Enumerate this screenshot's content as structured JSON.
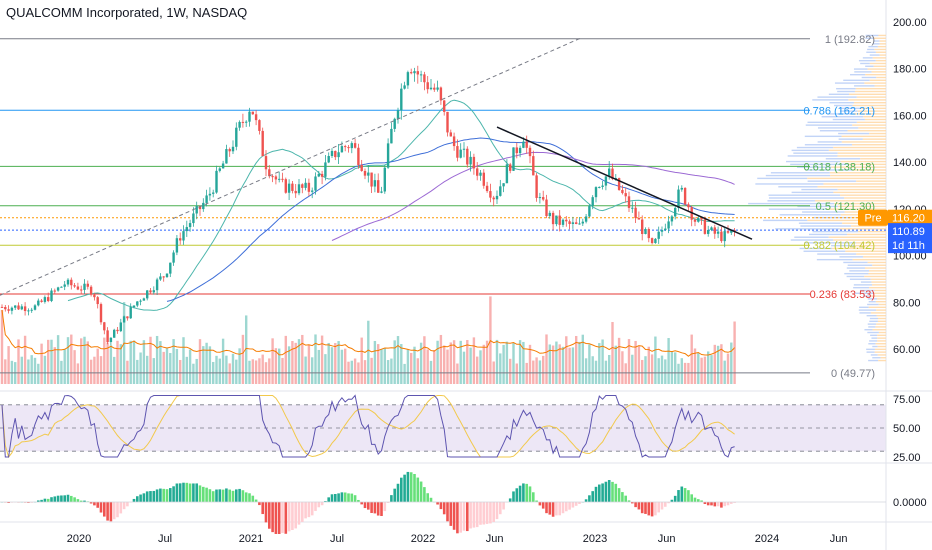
{
  "header": {
    "title": "QUALCOMM Incorporated, 1W, NASDAQ"
  },
  "colors": {
    "up": "#26a69a",
    "down": "#ef5350",
    "fib_gray": "#787b86",
    "fib_red": "#e53935",
    "fib_blue": "#2196f3",
    "fib_green": "#4caf50",
    "fib_olive": "#c0ca33",
    "ma_purple": "#9c6ad4",
    "ma_blue": "#3f6fd8",
    "ma_teal": "#4db6ac",
    "vol_ma": "#f57c00",
    "rsi_line": "#5e55b0",
    "rsi_ma": "#f2c94c",
    "rsi_bg": "#ede7f6",
    "price_badge": "#2962ff",
    "pre_badge": "#ff9800",
    "vp_up": "#ffd9a8",
    "vp_down": "#b3c9f5"
  },
  "price_axis": {
    "ticks": [
      "200.00",
      "180.00",
      "160.00",
      "140.00",
      "120.00",
      "100.00",
      "80.00",
      "60.00"
    ]
  },
  "rsi_axis": {
    "ticks": [
      "75.00",
      "50.00",
      "25.00"
    ]
  },
  "macd_axis": {
    "ticks": [
      "0.0000"
    ]
  },
  "time_axis": {
    "labels": [
      "2020",
      "Jul",
      "2021",
      "Jul",
      "2022",
      "Jun",
      "2023",
      "Jun",
      "2024",
      "Jun"
    ]
  },
  "fib_levels": [
    {
      "label": "1 (192.82)",
      "value": 192.82,
      "color_key": "fib_gray"
    },
    {
      "label": "0.786 (162.21)",
      "value": 162.21,
      "color_key": "fib_blue"
    },
    {
      "label": "0.618 (138.18)",
      "value": 138.18,
      "color_key": "fib_green"
    },
    {
      "label": "0.5 (121.30)",
      "value": 121.3,
      "color_key": "fib_green"
    },
    {
      "label": "0.382 (104.42)",
      "value": 104.42,
      "color_key": "fib_olive"
    },
    {
      "label": "0.236 (83.53)",
      "value": 83.53,
      "color_key": "fib_red"
    },
    {
      "label": "0 (49.77)",
      "value": 49.77,
      "color_key": "fib_gray"
    }
  ],
  "badges": {
    "pre_label": "Pre",
    "pre_price": "116.20",
    "last_price": "110.89",
    "countdown": "1d 11h"
  },
  "chart_data": {
    "type": "candlestick",
    "interval": "1W",
    "x_range": [
      "2019-10",
      "2024-07"
    ],
    "ylim": [
      45,
      200
    ],
    "close_anchors": [
      [
        "2019-10",
        78
      ],
      [
        "2019-12",
        88
      ],
      [
        "2020-02",
        85
      ],
      [
        "2020-03",
        63
      ],
      [
        "2020-05",
        80
      ],
      [
        "2020-07",
        92
      ],
      [
        "2020-08",
        108
      ],
      [
        "2020-10",
        125
      ],
      [
        "2020-12",
        152
      ],
      [
        "2021-01",
        165
      ],
      [
        "2021-02",
        140
      ],
      [
        "2021-03",
        130
      ],
      [
        "2021-05",
        128
      ],
      [
        "2021-07",
        145
      ],
      [
        "2021-08",
        148
      ],
      [
        "2021-10",
        125
      ],
      [
        "2021-11",
        160
      ],
      [
        "2021-12",
        183
      ],
      [
        "2022-01",
        175
      ],
      [
        "2022-02",
        170
      ],
      [
        "2022-03",
        148
      ],
      [
        "2022-05",
        135
      ],
      [
        "2022-06",
        125
      ],
      [
        "2022-08",
        152
      ],
      [
        "2022-09",
        125
      ],
      [
        "2022-10",
        115
      ],
      [
        "2022-12",
        112
      ],
      [
        "2023-01",
        130
      ],
      [
        "2023-02",
        135
      ],
      [
        "2023-04",
        115
      ],
      [
        "2023-05",
        103
      ],
      [
        "2023-06",
        115
      ],
      [
        "2023-07",
        128
      ],
      [
        "2023-08",
        115
      ],
      [
        "2023-09",
        110
      ],
      [
        "2023-10",
        108
      ],
      [
        "2023-11",
        110.89
      ]
    ],
    "volume_ma_note": "orange moving average over volume",
    "rsi": {
      "levels": [
        70,
        50,
        30
      ]
    },
    "macd": {
      "type": "histogram"
    }
  }
}
